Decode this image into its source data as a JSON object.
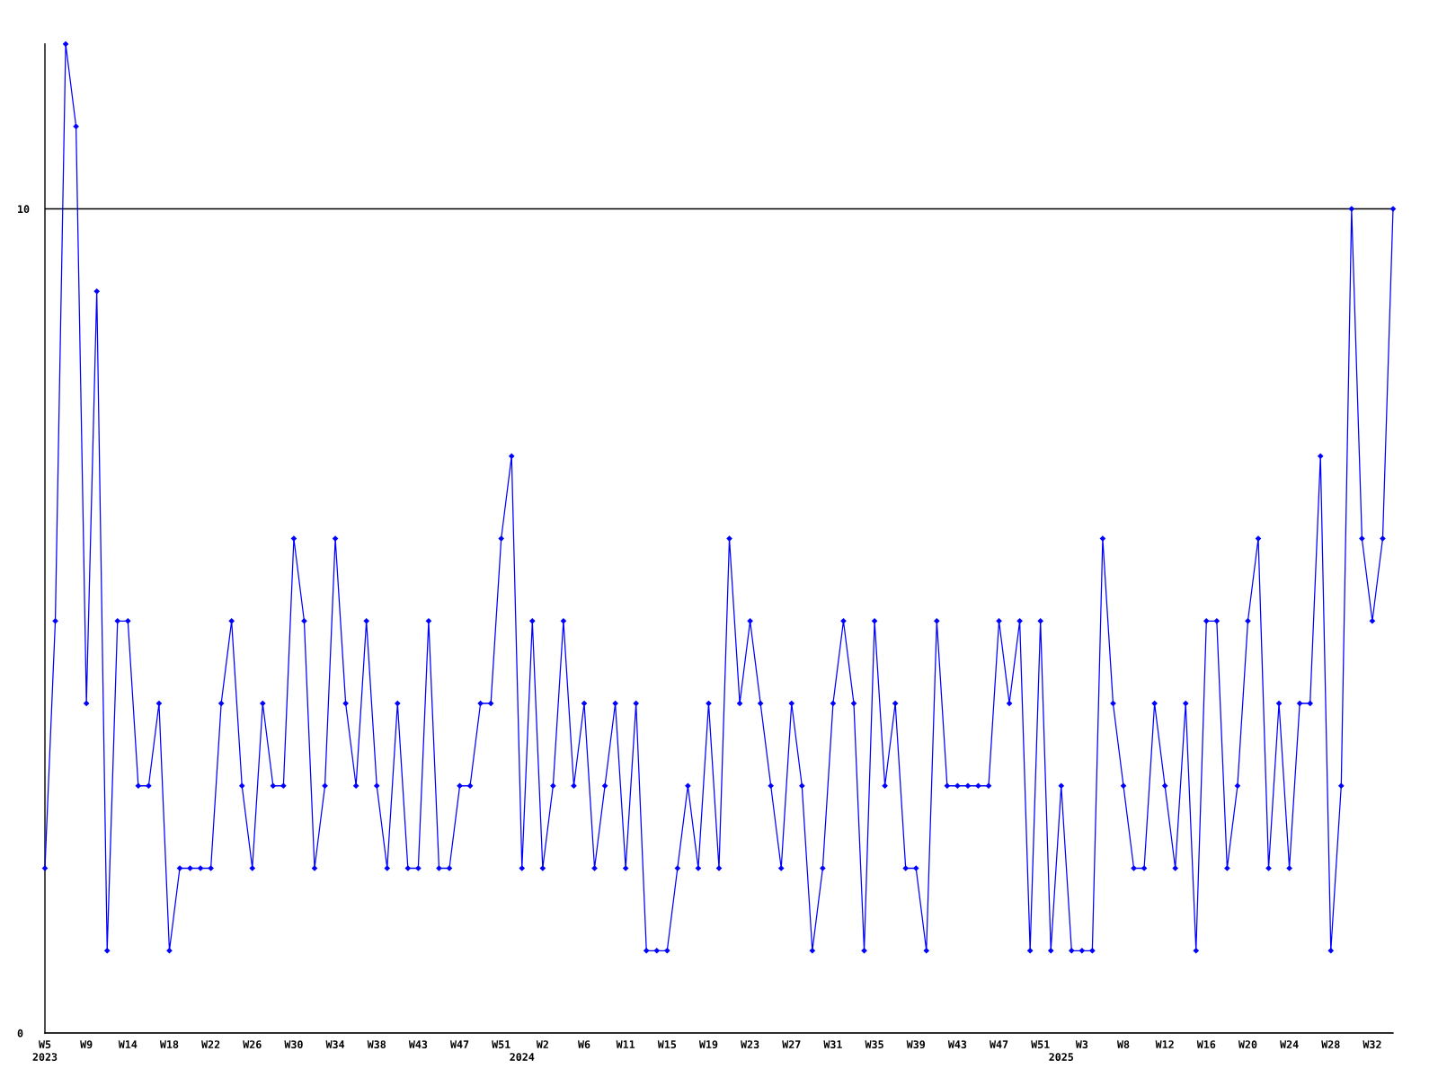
{
  "chart_data": {
    "type": "line",
    "categories": [
      "W5\n2023",
      null,
      null,
      null,
      "W9",
      null,
      null,
      null,
      "W14",
      null,
      null,
      null,
      "W18",
      null,
      null,
      null,
      "W22",
      null,
      null,
      null,
      "W26",
      null,
      null,
      null,
      "W30",
      null,
      null,
      null,
      "W34",
      null,
      null,
      null,
      "W38",
      null,
      null,
      null,
      "W43",
      null,
      null,
      null,
      "W47",
      null,
      null,
      null,
      "W51",
      null,
      "\n2024",
      null,
      "W2",
      null,
      null,
      null,
      "W6",
      null,
      null,
      null,
      "W11",
      null,
      null,
      null,
      "W15",
      null,
      null,
      null,
      "W19",
      null,
      null,
      null,
      "W23",
      null,
      null,
      null,
      "W27",
      null,
      null,
      null,
      "W31",
      null,
      null,
      null,
      "W35",
      null,
      null,
      null,
      "W39",
      null,
      null,
      null,
      "W43",
      null,
      null,
      null,
      "W47",
      null,
      null,
      null,
      "W51",
      null,
      "\n2025",
      null,
      "W3",
      null,
      null,
      null,
      "W8",
      null,
      null,
      null,
      "W12",
      null,
      null,
      null,
      "W16",
      null,
      null,
      null,
      "W20",
      null,
      null,
      null,
      "W24",
      null,
      null,
      null,
      "W28",
      null,
      null,
      null,
      "W32",
      null,
      null
    ],
    "series": [
      {
        "color": "#0000ff",
        "values": [
          2,
          5,
          12,
          11,
          4,
          9,
          1,
          5,
          5,
          3,
          3,
          4,
          1,
          2,
          2,
          2,
          2,
          4,
          5,
          3,
          2,
          4,
          3,
          3,
          6,
          5,
          2,
          3,
          6,
          4,
          3,
          5,
          3,
          2,
          4,
          2,
          2,
          5,
          2,
          2,
          3,
          3,
          4,
          4,
          6,
          7,
          2,
          5,
          2,
          3,
          5,
          3,
          4,
          2,
          3,
          4,
          2,
          4,
          1,
          1,
          1,
          2,
          3,
          2,
          4,
          2,
          6,
          4,
          5,
          4,
          3,
          2,
          4,
          3,
          1,
          2,
          4,
          5,
          4,
          1,
          5,
          3,
          4,
          2,
          2,
          1,
          5,
          3,
          3,
          3,
          3,
          3,
          5,
          4,
          5,
          1,
          5,
          1,
          3,
          1,
          1,
          1,
          6,
          4,
          3,
          2,
          2,
          4,
          3,
          2,
          4,
          1,
          5,
          5,
          2,
          3,
          5,
          6,
          2,
          4,
          2,
          4,
          4,
          7,
          1,
          3,
          10,
          6,
          5,
          6,
          10
        ]
      }
    ],
    "ylim": [
      0,
      12
    ],
    "yticks": [
      0,
      10
    ],
    "grid": "y",
    "marker": "diamond",
    "line_style": "solid"
  }
}
